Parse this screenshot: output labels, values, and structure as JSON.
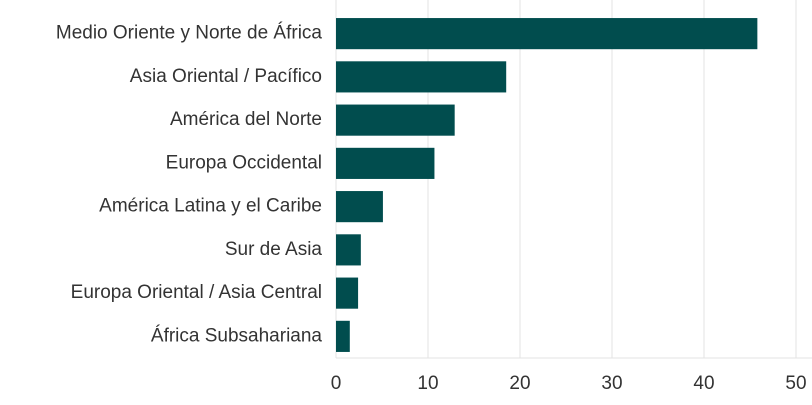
{
  "chart_data": {
    "type": "bar",
    "orientation": "horizontal",
    "categories": [
      "Medio Oriente y Norte de África",
      "Asia Oriental / Pacífico",
      "América del Norte",
      "Europa Occidental",
      "América Latina y el Caribe",
      "Sur de Asia",
      "Europa Oriental / Asia Central",
      "África Subsahariana"
    ],
    "values": [
      45.8,
      18.5,
      12.9,
      10.7,
      5.1,
      2.7,
      2.4,
      1.5
    ],
    "color": "#014d4e",
    "xlim": [
      0,
      50
    ],
    "xticks": [
      0,
      10,
      20,
      30,
      40,
      50
    ],
    "grid": true
  }
}
